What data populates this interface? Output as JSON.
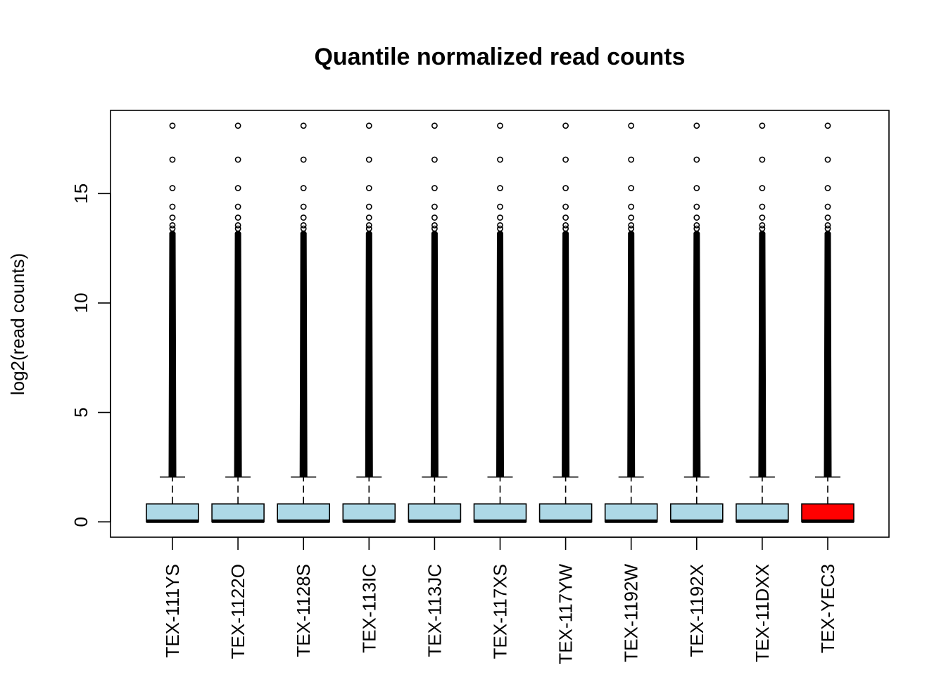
{
  "chart_data": {
    "type": "boxplot",
    "title": "Quantile normalized read counts",
    "ylabel": "log2(read counts)",
    "xlabel": "",
    "ylim": [
      -0.7,
      18.8
    ],
    "yticks": [
      0,
      5,
      10,
      15
    ],
    "grid": false,
    "legend": "none",
    "colors": {
      "box_fill": "#ADD8E6",
      "highlight_fill": "#FF0000",
      "stroke": "#000000"
    },
    "categories": [
      "TEX-111YS",
      "TEX-1122O",
      "TEX-1128S",
      "TEX-113IC",
      "TEX-113JC",
      "TEX-117XS",
      "TEX-117YW",
      "TEX-1192W",
      "TEX-1192X",
      "TEX-11DXX",
      "TEX-YEC3"
    ],
    "highlight_index": 10,
    "boxes": {
      "min": 0,
      "q1": 0,
      "median": 0,
      "q3": 0.82,
      "whisker_high": 2.05
    },
    "outlier_density_range": [
      2.05,
      13.2
    ],
    "outliers": [
      13.4,
      13.55,
      13.9,
      14.4,
      15.25,
      16.55,
      18.1
    ]
  }
}
